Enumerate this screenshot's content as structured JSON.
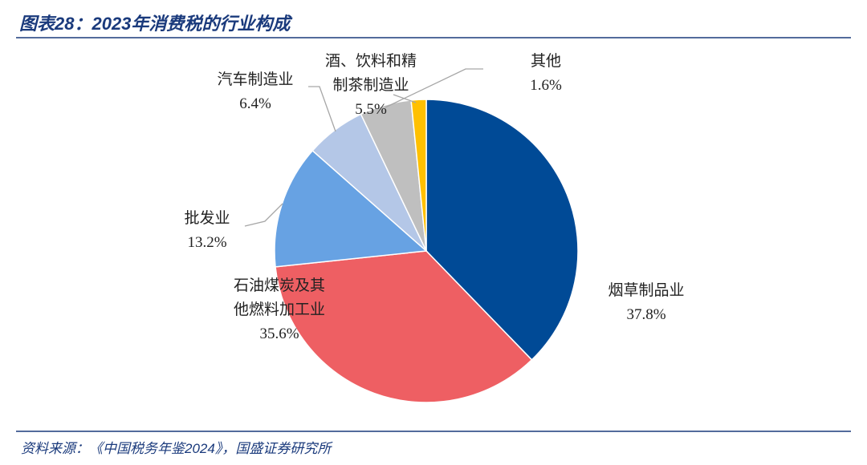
{
  "chart_data": {
    "type": "pie",
    "title": "图表28：2023年消费税的行业构成",
    "source": "资料来源：《中国税务年鉴2024》，国盛证券研究所",
    "categories": [
      "烟草制品业",
      "石油煤炭及其他燃料加工业",
      "批发业",
      "汽车制造业",
      "酒、饮料和精制茶制造业",
      "其他"
    ],
    "values": [
      37.8,
      35.6,
      13.2,
      6.4,
      5.5,
      1.6
    ],
    "value_labels": [
      "37.8%",
      "35.6%",
      "13.2%",
      "6.4%",
      "5.5%",
      "1.6%"
    ],
    "colors": [
      "#004a96",
      "#ee5f63",
      "#67a2e3",
      "#b4c7e7",
      "#bfbfbf",
      "#ffc000"
    ]
  }
}
